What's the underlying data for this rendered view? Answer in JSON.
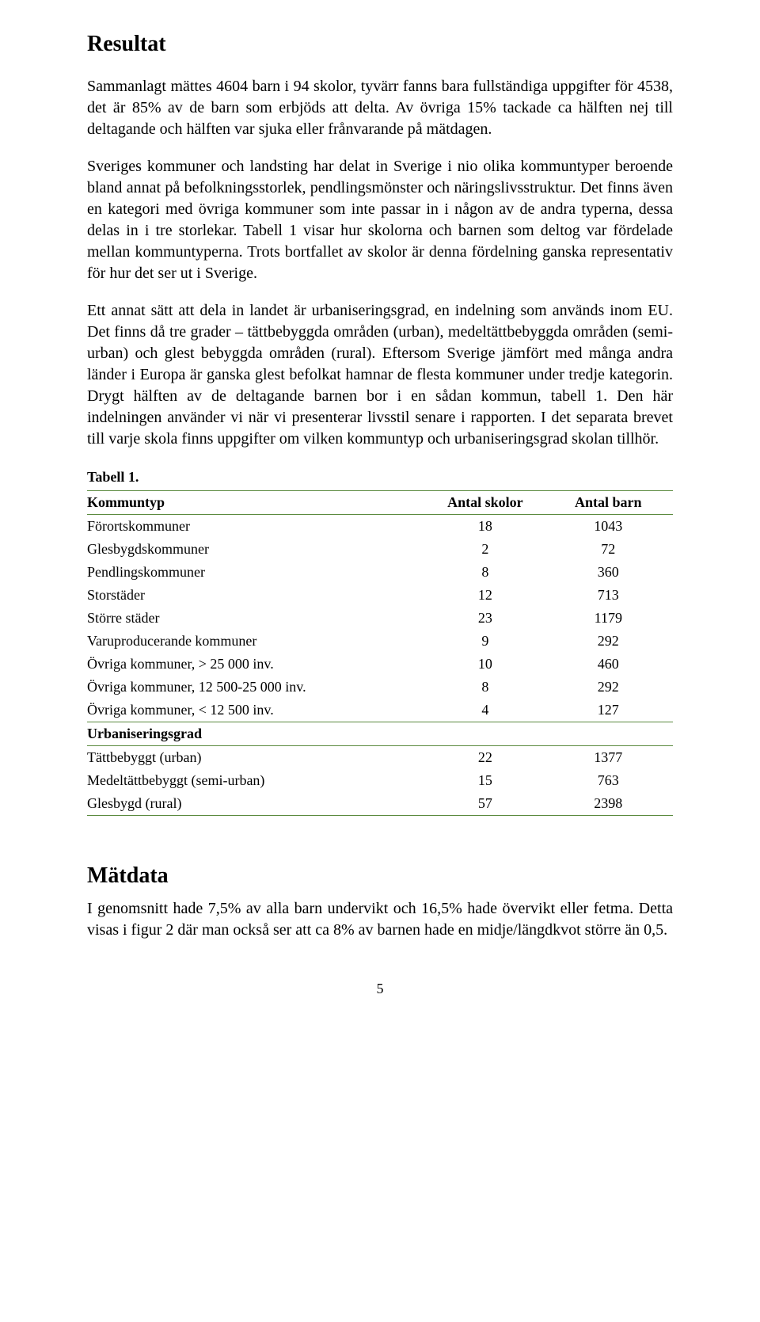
{
  "heading1": "Resultat",
  "para1": "Sammanlagt mättes 4604 barn i 94 skolor, tyvärr fanns bara fullständiga uppgifter för 4538, det är 85% av de barn som erbjöds att delta. Av övriga 15% tackade ca hälften nej till deltagande och hälften var sjuka eller frånvarande på mätdagen.",
  "para2": "Sveriges kommuner och landsting har delat in Sverige i nio olika kommuntyper beroende bland annat på befolkningsstorlek, pendlingsmönster och näringslivsstruktur. Det finns även en kategori med övriga kommuner som inte passar in i någon av de andra typerna, dessa delas in i tre storlekar. Tabell 1 visar hur skolorna och barnen som deltog var fördelade mellan kommuntyperna. Trots bortfallet av skolor är denna fördelning ganska representativ för hur det ser ut i Sverige.",
  "para3": "Ett annat sätt att dela in landet är urbaniseringsgrad, en indelning som används inom EU. Det finns då tre grader – tättbebyggda områden (urban), medeltättbebyggda områden (semi-urban) och glest bebyggda områden (rural). Eftersom Sverige jämfört med många andra länder i Europa är ganska glest befolkat hamnar de flesta kommuner under tredje kategorin. Drygt hälften av de deltagande barnen bor i en sådan kommun, tabell 1. Den här indelningen använder vi när vi presenterar livsstil senare i rapporten. I det separata brevet till varje skola finns uppgifter om vilken kommuntyp och urbaniseringsgrad skolan tillhör.",
  "table": {
    "title": "Tabell 1.",
    "columns": [
      "Kommuntyp",
      "Antal skolor",
      "Antal barn"
    ],
    "section1_rows": [
      [
        "Förortskommuner",
        "18",
        "1043"
      ],
      [
        "Glesbygdskommuner",
        "2",
        "72"
      ],
      [
        "Pendlingskommuner",
        "8",
        "360"
      ],
      [
        "Storstäder",
        "12",
        "713"
      ],
      [
        "Större städer",
        "23",
        "1179"
      ],
      [
        "Varuproducerande kommuner",
        "9",
        "292"
      ],
      [
        "Övriga kommuner, > 25 000 inv.",
        "10",
        "460"
      ],
      [
        "Övriga kommuner, 12 500-25 000 inv.",
        "8",
        "292"
      ],
      [
        "Övriga kommuner, < 12 500 inv.",
        "4",
        "127"
      ]
    ],
    "section2_header": "Urbaniseringsgrad",
    "section2_rows": [
      [
        "Tättbebyggt (urban)",
        "22",
        "1377"
      ],
      [
        "Medeltättbebyggt (semi-urban)",
        "15",
        "763"
      ],
      [
        "Glesbygd (rural)",
        "57",
        "2398"
      ]
    ],
    "border_color": "#5b8a3f"
  },
  "heading2": "Mätdata",
  "para4": "I genomsnitt hade 7,5% av alla barn undervikt och 16,5% hade övervikt eller fetma. Detta visas i figur 2 där man också ser att ca 8% av barnen hade en midje/längdkvot större än 0,5.",
  "page_number": "5"
}
